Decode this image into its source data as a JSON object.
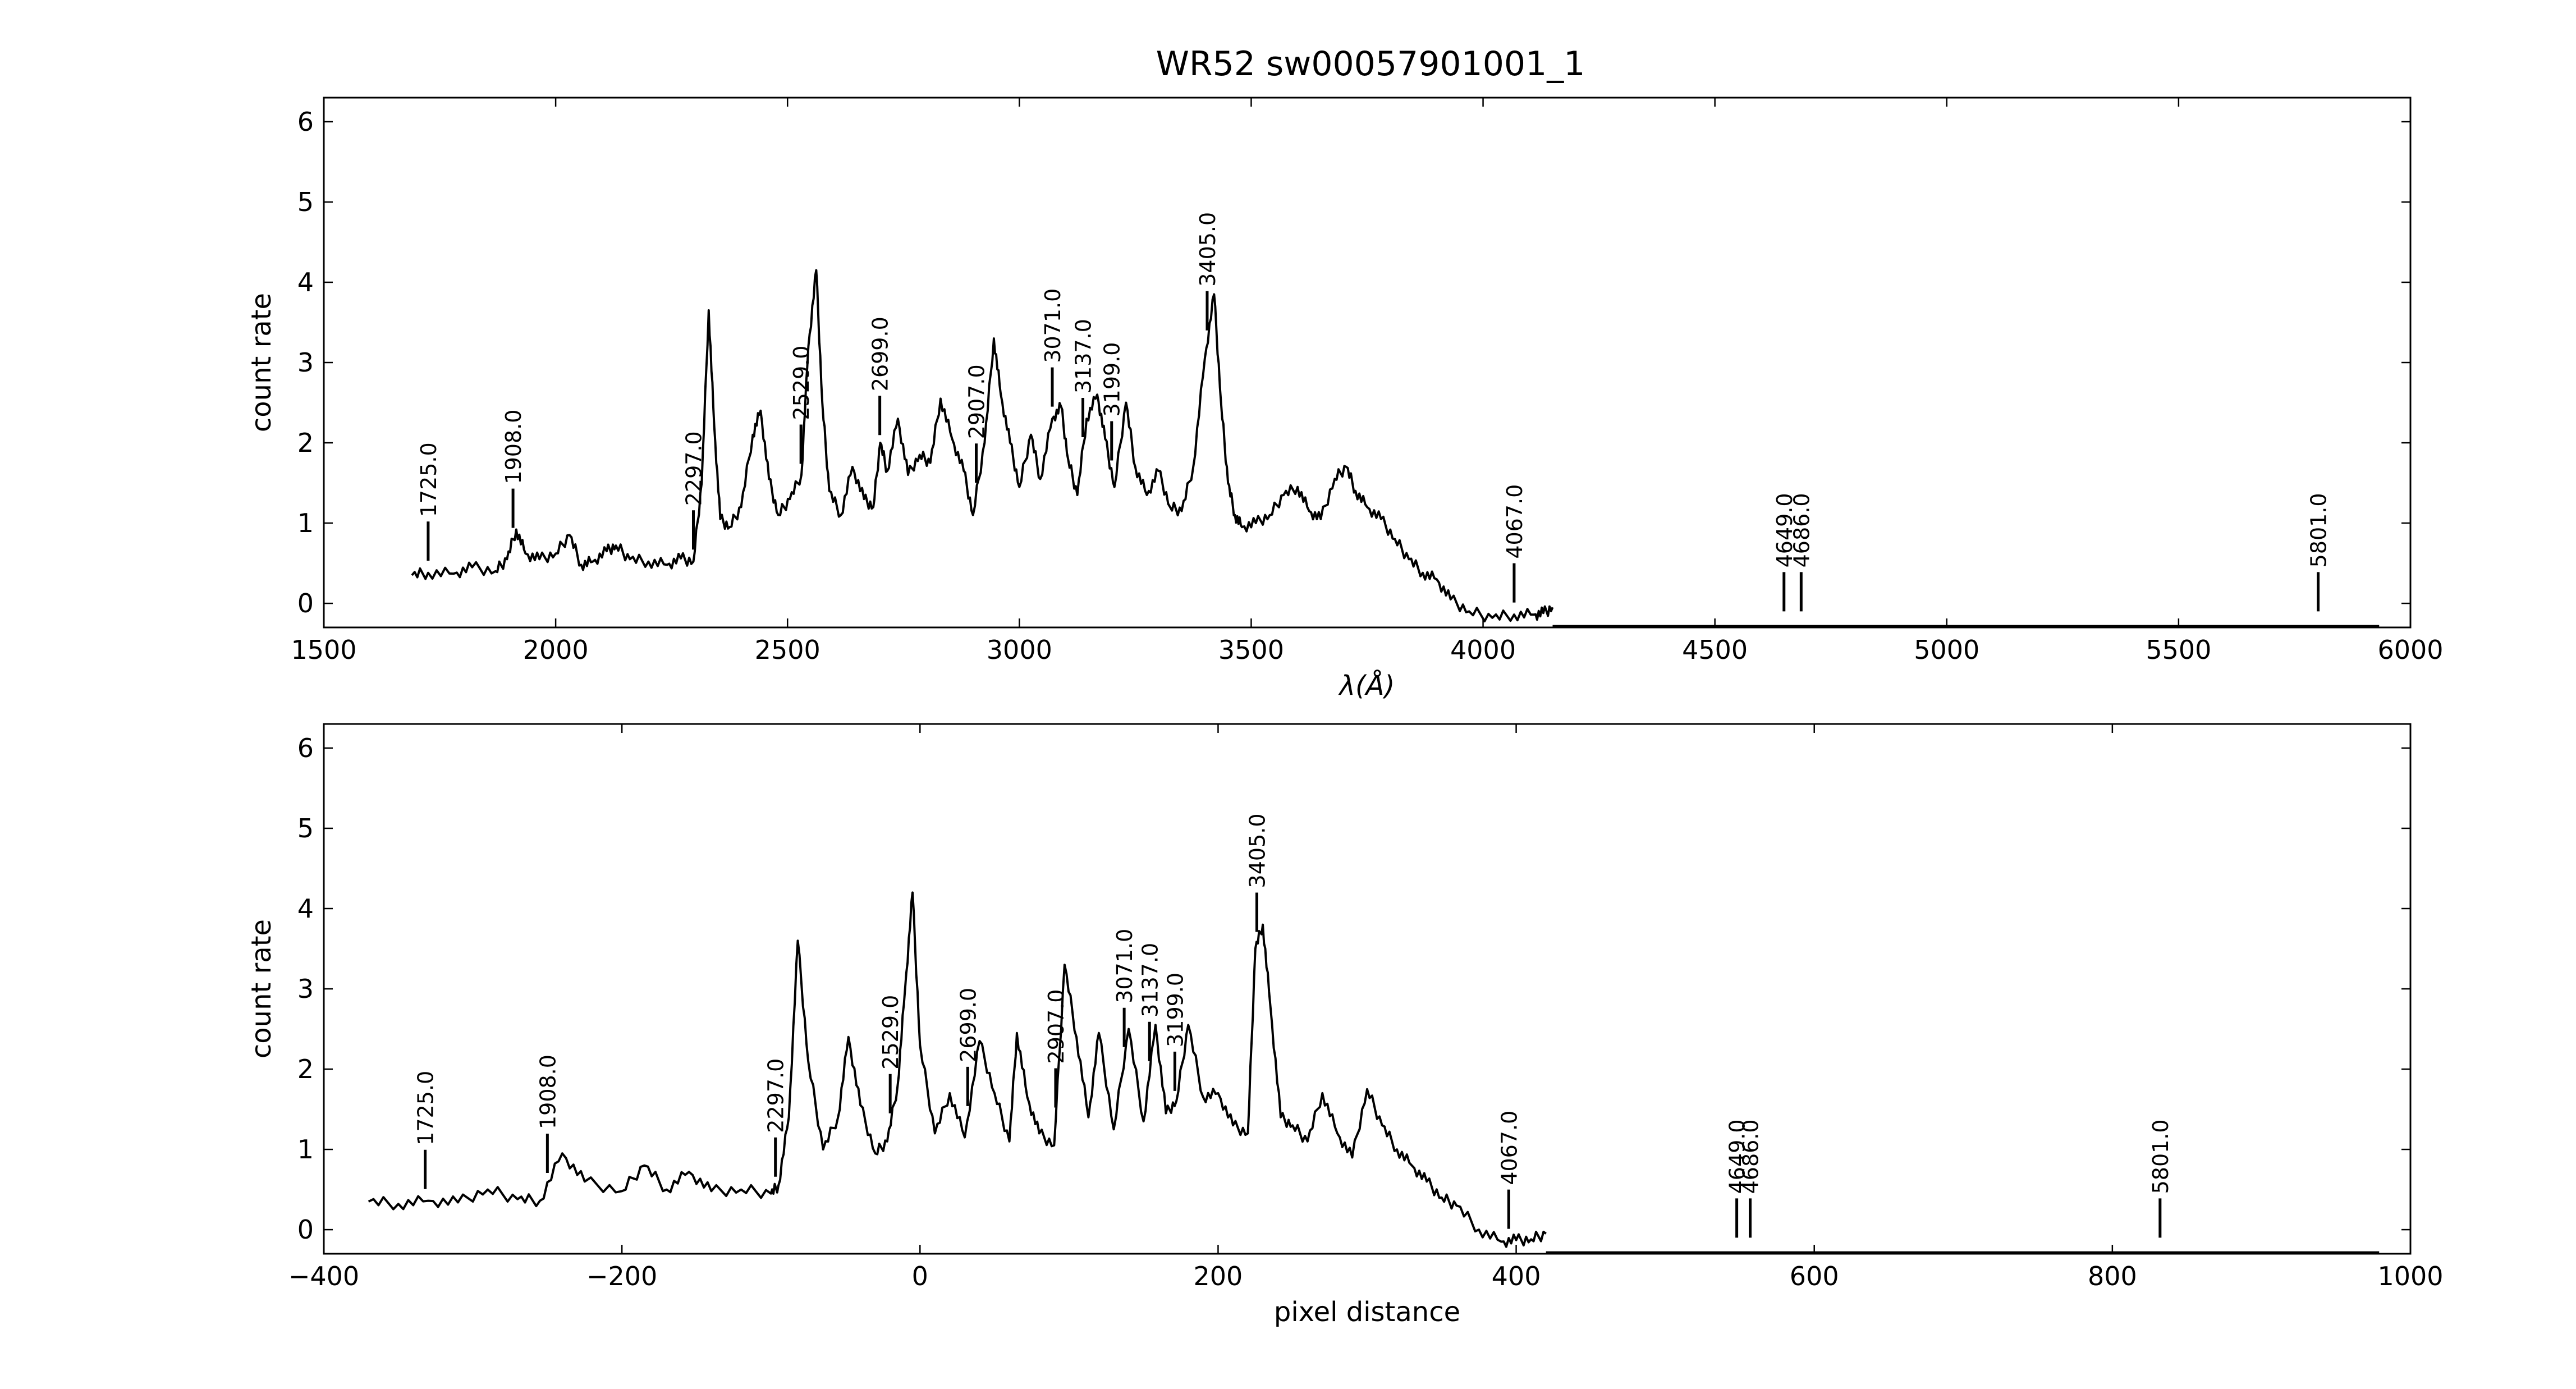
{
  "title": "WR52  sw00057901001_1",
  "chart_data": [
    {
      "type": "line",
      "xlabel": "λ(Å)",
      "ylabel": "count rate",
      "xlim": [
        1500,
        6000
      ],
      "ylim": [
        -0.3,
        6.3
      ],
      "xticks": [
        1500,
        2000,
        2500,
        3000,
        3500,
        4000,
        4500,
        5000,
        5500,
        6000
      ],
      "xtick_labels": [
        "1500",
        "2000",
        "2500",
        "3000",
        "3500",
        "4000",
        "4500",
        "5000",
        "5500",
        "6000"
      ],
      "yticks": [
        0,
        1,
        2,
        3,
        4,
        5,
        6
      ],
      "ytick_labels": [
        "0",
        "1",
        "2",
        "3",
        "4",
        "5",
        "6"
      ],
      "series": [
        {
          "x": [
            1690,
            1725,
            1780,
            1820,
            1870,
            1895,
            1915,
            1935,
            1965,
            2000,
            2030,
            2055,
            2080,
            2110,
            2130,
            2160,
            2200,
            2240,
            2270,
            2297,
            2315,
            2330,
            2342,
            2355,
            2375,
            2400,
            2425,
            2442,
            2460,
            2480,
            2505,
            2530,
            2545,
            2562,
            2575,
            2590,
            2615,
            2640,
            2665,
            2685,
            2700,
            2715,
            2738,
            2760,
            2785,
            2808,
            2830,
            2855,
            2880,
            2900,
            2925,
            2945,
            2960,
            2980,
            3000,
            3025,
            3045,
            3071,
            3090,
            3105,
            3125,
            3145,
            3168,
            3185,
            3205,
            3230,
            3250,
            3275,
            3300,
            3325,
            3350,
            3375,
            3400,
            3420,
            3435,
            3450,
            3465,
            3480,
            3510,
            3540,
            3570,
            3600,
            3625,
            3650,
            3680,
            3705,
            3725,
            3750,
            3780,
            3810,
            3840,
            3870,
            3900,
            3930,
            3970,
            4020,
            4067,
            4110,
            4130,
            4150
          ],
          "y": [
            0.35,
            0.38,
            0.37,
            0.45,
            0.4,
            0.55,
            0.92,
            0.62,
            0.55,
            0.62,
            0.85,
            0.48,
            0.52,
            0.65,
            0.72,
            0.55,
            0.52,
            0.48,
            0.56,
            0.52,
            1.5,
            3.65,
            2.2,
            1.05,
            0.95,
            1.2,
            2.1,
            2.4,
            1.55,
            1.1,
            1.3,
            1.6,
            3.2,
            4.15,
            2.5,
            1.4,
            1.1,
            1.7,
            1.3,
            1.2,
            2.0,
            1.65,
            2.3,
            1.6,
            1.85,
            1.75,
            2.55,
            2.05,
            1.65,
            1.1,
            2.0,
            3.3,
            2.6,
            2.0,
            1.45,
            2.1,
            1.55,
            2.3,
            2.45,
            1.8,
            1.35,
            2.3,
            2.6,
            2.05,
            1.45,
            2.5,
            1.7,
            1.35,
            1.65,
            1.2,
            1.15,
            1.7,
            3.05,
            3.85,
            2.5,
            1.5,
            1.1,
            0.95,
            1.0,
            1.1,
            1.35,
            1.45,
            1.15,
            1.05,
            1.55,
            1.7,
            1.4,
            1.2,
            1.05,
            0.8,
            0.55,
            0.38,
            0.3,
            0.05,
            -0.1,
            -0.18,
            -0.14,
            -0.14,
            -0.12,
            -0.05
          ]
        }
      ],
      "annotations": [
        {
          "text": "1725.0",
          "x": 1725
        },
        {
          "text": "1908.0",
          "x": 1908
        },
        {
          "text": "2297.0",
          "x": 2297
        },
        {
          "text": "2529.0",
          "x": 2529
        },
        {
          "text": "2699.0",
          "x": 2699
        },
        {
          "text": "2907.0",
          "x": 2907
        },
        {
          "text": "3071.0",
          "x": 3071
        },
        {
          "text": "3137.0",
          "x": 3137
        },
        {
          "text": "3199.0",
          "x": 3199
        },
        {
          "text": "3405.0",
          "x": 3405
        },
        {
          "text": "4067.0",
          "x": 4067
        },
        {
          "text": "4649.0",
          "x": 4649
        },
        {
          "text": "4686.0",
          "x": 4686
        },
        {
          "text": "5801.0",
          "x": 5801
        }
      ]
    },
    {
      "type": "line",
      "xlabel": "pixel distance",
      "ylabel": "count rate",
      "xlim": [
        -400,
        1000
      ],
      "ylim": [
        -0.3,
        6.3
      ],
      "xticks": [
        -400,
        -200,
        0,
        200,
        400,
        600,
        800,
        1000
      ],
      "xtick_labels": [
        "−400",
        "−200",
        "0",
        "200",
        "400",
        "600",
        "800",
        "1000"
      ],
      "yticks": [
        0,
        1,
        2,
        3,
        4,
        5,
        6
      ],
      "ytick_labels": [
        "0",
        "1",
        "2",
        "3",
        "4",
        "5",
        "6"
      ],
      "series": [
        {
          "x": [
            -370,
            -350,
            -330,
            -310,
            -290,
            -270,
            -255,
            -240,
            -225,
            -200,
            -185,
            -170,
            -155,
            -140,
            -120,
            -100,
            -95,
            -88,
            -82,
            -75,
            -65,
            -55,
            -48,
            -40,
            -30,
            -22,
            -15,
            -10,
            -5,
            0,
            10,
            20,
            30,
            40,
            50,
            60,
            65,
            72,
            80,
            90,
            97,
            105,
            113,
            120,
            130,
            140,
            150,
            158,
            165,
            172,
            180,
            190,
            200,
            210,
            220,
            225,
            230,
            235,
            242,
            250,
            260,
            270,
            280,
            290,
            300,
            310,
            320,
            330,
            340,
            350,
            360,
            375,
            390,
            400,
            410,
            420
          ],
          "y": [
            0.35,
            0.32,
            0.36,
            0.34,
            0.5,
            0.38,
            0.36,
            0.95,
            0.6,
            0.48,
            0.8,
            0.5,
            0.72,
            0.48,
            0.5,
            0.45,
            0.55,
            1.4,
            3.6,
            2.1,
            1.0,
            1.4,
            2.4,
            1.55,
            0.95,
            1.1,
            1.8,
            3.0,
            4.2,
            2.3,
            1.2,
            1.7,
            1.15,
            2.35,
            1.7,
            1.1,
            2.45,
            1.65,
            1.2,
            1.05,
            3.3,
            2.4,
            1.4,
            2.45,
            1.25,
            2.5,
            1.35,
            2.55,
            1.45,
            1.6,
            2.55,
            1.65,
            1.7,
            1.3,
            1.2,
            3.5,
            3.8,
            2.8,
            1.4,
            1.3,
            1.1,
            1.7,
            1.2,
            0.9,
            1.75,
            1.3,
            1.0,
            0.8,
            0.6,
            0.4,
            0.3,
            0.0,
            -0.15,
            -0.13,
            -0.12,
            -0.05
          ]
        }
      ],
      "annotations": [
        {
          "text": "1725.0",
          "x": -332
        },
        {
          "text": "1908.0",
          "x": -250
        },
        {
          "text": "2297.0",
          "x": -97
        },
        {
          "text": "2529.0",
          "x": -20
        },
        {
          "text": "2699.0",
          "x": 32
        },
        {
          "text": "2907.0",
          "x": 91
        },
        {
          "text": "3071.0",
          "x": 137
        },
        {
          "text": "3137.0",
          "x": 154
        },
        {
          "text": "3199.0",
          "x": 171
        },
        {
          "text": "3405.0",
          "x": 226
        },
        {
          "text": "4067.0",
          "x": 395
        },
        {
          "text": "4649.0",
          "x": 548
        },
        {
          "text": "4686.0",
          "x": 557
        },
        {
          "text": "5801.0",
          "x": 832
        }
      ]
    }
  ]
}
